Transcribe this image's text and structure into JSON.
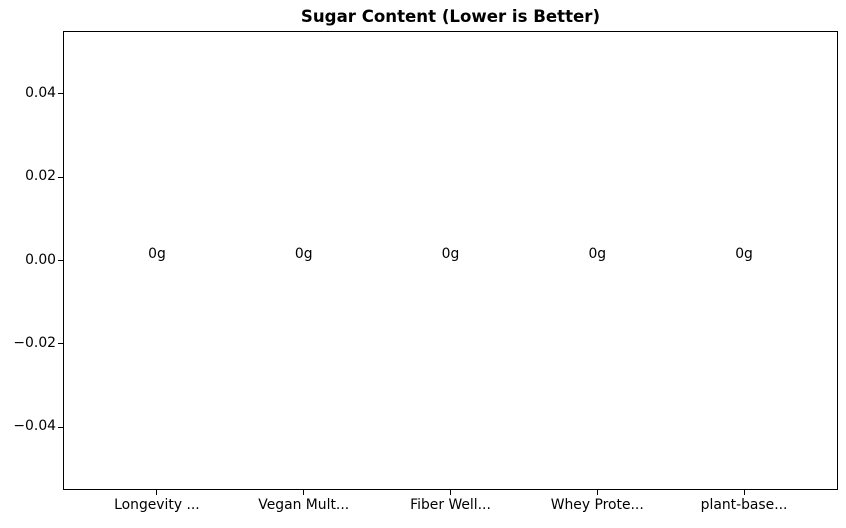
{
  "chart_data": {
    "type": "bar",
    "title": "Sugar Content (Lower is Better)",
    "categories": [
      "Longevity ...",
      "Vegan Mult...",
      "Fiber Well...",
      "Whey Prote...",
      "plant-base..."
    ],
    "values": [
      0,
      0,
      0,
      0,
      0
    ],
    "bar_labels": [
      "0g",
      "0g",
      "0g",
      "0g",
      "0g"
    ],
    "yticks": [
      {
        "value": 0.04,
        "label": "0.04"
      },
      {
        "value": 0.02,
        "label": "0.02"
      },
      {
        "value": 0.0,
        "label": "0.00"
      },
      {
        "value": -0.02,
        "label": "−0.02"
      },
      {
        "value": -0.04,
        "label": "−0.04"
      }
    ],
    "ylim": [
      -0.055,
      0.055
    ],
    "xlim": [
      -0.64,
      4.64
    ],
    "xlabel": "",
    "ylabel": "",
    "grid": false,
    "legend": false,
    "colors": {
      "text": "#000000",
      "background": "#ffffff",
      "spine": "#000000"
    }
  }
}
